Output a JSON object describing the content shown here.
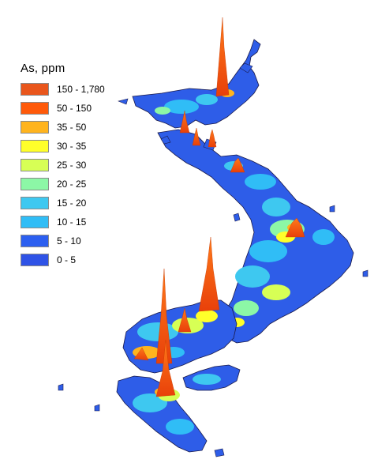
{
  "legend": {
    "title": "As, ppm",
    "classes": [
      {
        "label": "150 - 1,780",
        "color": "#e9561c"
      },
      {
        "label": "50 - 150",
        "color": "#ff5a0a"
      },
      {
        "label": "35 - 50",
        "color": "#ffb41e"
      },
      {
        "label": "30 - 35",
        "color": "#ffff2a"
      },
      {
        "label": "25 - 30",
        "color": "#d7ff55"
      },
      {
        "label": "20 - 25",
        "color": "#8cf7a6"
      },
      {
        "label": "15 - 20",
        "color": "#3ec8f0"
      },
      {
        "label": "10 - 15",
        "color": "#30bdf6"
      },
      {
        "label": "5 - 10",
        "color": "#2c5ff0"
      },
      {
        "label": "0 - 5",
        "color": "#2f53e6"
      }
    ]
  },
  "colors": {
    "land_base": "#2e5de8",
    "outline": "#1a1a4a"
  }
}
